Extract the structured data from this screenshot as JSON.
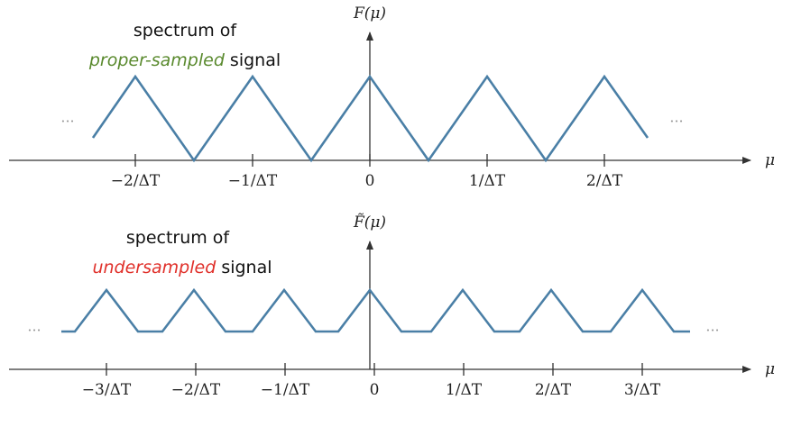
{
  "top": {
    "y_label": "F(μ)",
    "x_label": "μ",
    "caption_line1": "spectrum of",
    "caption_emphasis": "proper-sampled",
    "caption_rest": "signal",
    "ellipsis_left": "···",
    "ellipsis_right": "···",
    "ticks": [
      "−2/ΔT",
      "−1/ΔT",
      "0",
      "1/ΔT",
      "2/ΔT"
    ]
  },
  "bottom": {
    "y_label": "F̃(μ)",
    "x_label": "μ",
    "caption_line1": "spectrum of",
    "caption_emphasis": "undersampled",
    "caption_rest": "signal",
    "ellipsis_left": "···",
    "ellipsis_right": "···",
    "ticks": [
      "−3/ΔT",
      "−2/ΔT",
      "−1/ΔT",
      "0",
      "1/ΔT",
      "2/ΔT",
      "3/ΔT"
    ]
  }
}
